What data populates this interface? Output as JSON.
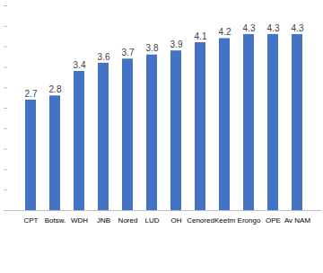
{
  "chart_data": {
    "type": "bar",
    "categories": [
      "CPT",
      "Botsw.",
      "WDH",
      "JNB",
      "Nored",
      "LUD",
      "OH",
      "Cenored",
      "Keetm",
      "Erongo",
      "OPE",
      "Av NAM"
    ],
    "values": [
      2.7,
      2.8,
      3.4,
      3.6,
      3.7,
      3.8,
      3.9,
      4.1,
      4.2,
      4.3,
      4.3,
      4.3
    ],
    "color": "#4472c4",
    "ylim": [
      0,
      5
    ],
    "yticks": [
      0,
      0.5,
      1,
      1.5,
      2,
      2.5,
      3,
      3.5,
      4,
      4.5,
      5
    ],
    "data_labels": true,
    "tick_labels": "x"
  }
}
